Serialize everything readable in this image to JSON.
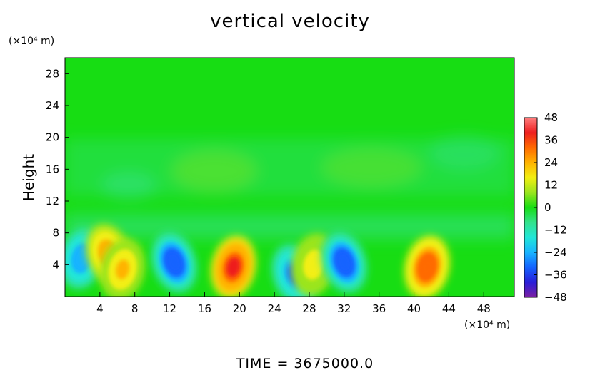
{
  "chart_data": {
    "type": "heatmap",
    "title": "vertical velocity",
    "ylabel": "Height",
    "x_unit": "(×10⁴ m)",
    "y_unit": "(×10⁴ m)",
    "xlim": [
      0,
      51.5
    ],
    "ylim": [
      0,
      30
    ],
    "x_ticks": [
      4,
      8,
      12,
      16,
      20,
      24,
      28,
      32,
      36,
      40,
      44,
      48
    ],
    "y_ticks": [
      4,
      8,
      12,
      16,
      20,
      24,
      28
    ],
    "colorbar": {
      "ticks": [
        48,
        36,
        24,
        12,
        0,
        -12,
        -24,
        -36,
        -48
      ],
      "range": [
        -48,
        48
      ],
      "colors": [
        "#7b1fa2",
        "#2a1ed8",
        "#1463ff",
        "#18b4ff",
        "#21e6d8",
        "#33e28c",
        "#17dd13",
        "#9be51f",
        "#f2ef12",
        "#ffb300",
        "#ff6a00",
        "#ee1f1f",
        "#ff7f7f"
      ]
    },
    "background_value": 2,
    "features": [
      {
        "x": 1.9,
        "y": 4.8,
        "value": -26
      },
      {
        "x": 5.0,
        "y": 5.3,
        "value": 26
      },
      {
        "x": 6.6,
        "y": 3.4,
        "value": 20
      },
      {
        "x": 12.5,
        "y": 4.3,
        "value": -34
      },
      {
        "x": 19.3,
        "y": 3.7,
        "value": 38
      },
      {
        "x": 26.3,
        "y": 2.8,
        "value": -30
      },
      {
        "x": 28.5,
        "y": 4.0,
        "value": 14
      },
      {
        "x": 32.0,
        "y": 4.3,
        "value": -36
      },
      {
        "x": 41.5,
        "y": 3.7,
        "value": 34
      }
    ],
    "footer": "TIME  =  3675000.0"
  }
}
